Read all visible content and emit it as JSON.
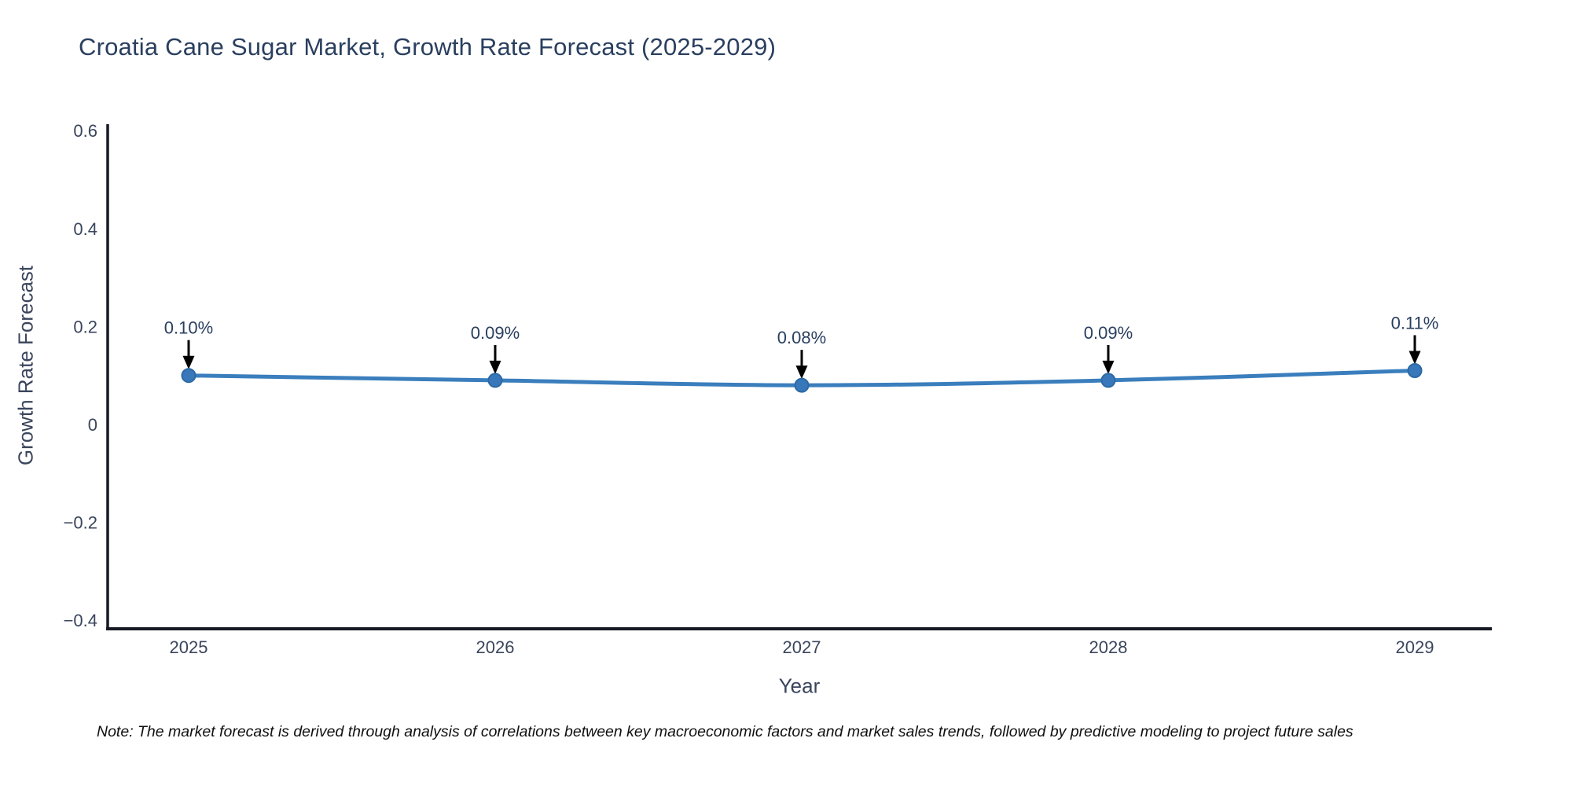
{
  "title": "Croatia Cane Sugar Market, Growth Rate Forecast (2025-2029)",
  "note": "Note: The market forecast is derived through analysis of correlations between key macroeconomic factors and market sales trends, followed by predictive modeling to project future sales",
  "chart_data": {
    "type": "line",
    "title": "Croatia Cane Sugar Market, Growth Rate Forecast (2025-2029)",
    "x": [
      2025,
      2026,
      2027,
      2028,
      2029
    ],
    "xlabel": "Year",
    "ylabel": "Growth Rate Forecast",
    "ylim": [
      -0.4,
      0.6
    ],
    "yticks": [
      0.6,
      0.4,
      0.2,
      0,
      -0.2,
      -0.4
    ],
    "ytick_labels": [
      "0.6",
      "0.4",
      "0.2",
      "0",
      "−0.2",
      "−0.4"
    ],
    "series": [
      {
        "name": "Growth Rate Forecast",
        "values": [
          0.1,
          0.09,
          0.08,
          0.09,
          0.11
        ],
        "point_labels": [
          "0.10%",
          "0.09%",
          "0.08%",
          "0.09%",
          "0.11%"
        ]
      }
    ],
    "grid": false,
    "legend": "none",
    "colors": {
      "line": "#3a7ebd",
      "marker": "#3878ba",
      "marker_edge": "#2c69a5",
      "axis": "#161a22",
      "annotation_arrow": "#000000",
      "annotation_text": "#2a3f5f",
      "tick_text": "#3a455c",
      "title_text": "#2a3f5f"
    }
  }
}
